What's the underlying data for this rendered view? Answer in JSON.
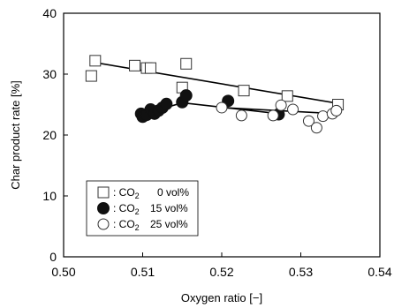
{
  "chart_data": {
    "type": "scatter",
    "xlabel": "Oxygen ratio [−]",
    "ylabel": "Char product rate [%]",
    "xlim": [
      0.5,
      0.54
    ],
    "ylim": [
      0,
      40
    ],
    "x_ticks": [
      "0.50",
      "0.51",
      "0.52",
      "0.53",
      "0.54"
    ],
    "y_ticks": [
      "0",
      "10",
      "20",
      "30",
      "40"
    ],
    "grid": false,
    "legend_position": "bottom-left",
    "series": [
      {
        "name": "CO2 0 vol%",
        "legend_gas": "CO",
        "legend_sub": "2",
        "legend_conc": "0 vol%",
        "marker": "open-square",
        "points": [
          [
            0.5035,
            29.7
          ],
          [
            0.504,
            32.2
          ],
          [
            0.509,
            31.4
          ],
          [
            0.5105,
            31.0
          ],
          [
            0.511,
            31.0
          ],
          [
            0.515,
            27.8
          ],
          [
            0.5155,
            31.7
          ],
          [
            0.5228,
            27.3
          ],
          [
            0.5283,
            26.4
          ],
          [
            0.5347,
            25.0
          ]
        ],
        "trend": [
          [
            0.5035,
            32.0
          ],
          [
            0.5347,
            25.2
          ]
        ]
      },
      {
        "name": "CO2 15 vol%",
        "legend_gas": "CO",
        "legend_sub": "2",
        "legend_conc": "15 vol%",
        "marker": "filled-circle",
        "points": [
          [
            0.5098,
            23.5
          ],
          [
            0.51,
            23.0
          ],
          [
            0.5105,
            23.3
          ],
          [
            0.511,
            24.2
          ],
          [
            0.5115,
            23.5
          ],
          [
            0.512,
            24.0
          ],
          [
            0.5125,
            24.5
          ],
          [
            0.513,
            25.1
          ],
          [
            0.515,
            25.4
          ],
          [
            0.5155,
            26.5
          ],
          [
            0.5208,
            25.6
          ],
          [
            0.5272,
            23.4
          ]
        ],
        "trend": [
          [
            0.5098,
            23.3
          ],
          [
            0.515,
            25.3
          ],
          [
            0.5272,
            23.5
          ]
        ]
      },
      {
        "name": "CO2 25 vol%",
        "legend_gas": "CO",
        "legend_sub": "2",
        "legend_conc": "25 vol%",
        "marker": "open-circle",
        "points": [
          [
            0.52,
            24.5
          ],
          [
            0.5225,
            23.2
          ],
          [
            0.5265,
            23.2
          ],
          [
            0.5275,
            24.9
          ],
          [
            0.529,
            24.2
          ],
          [
            0.531,
            22.3
          ],
          [
            0.532,
            21.2
          ],
          [
            0.5328,
            23.1
          ],
          [
            0.534,
            23.5
          ],
          [
            0.5345,
            24.0
          ]
        ],
        "trend": [
          [
            0.52,
            24.5
          ],
          [
            0.5345,
            23.5
          ]
        ]
      }
    ]
  }
}
